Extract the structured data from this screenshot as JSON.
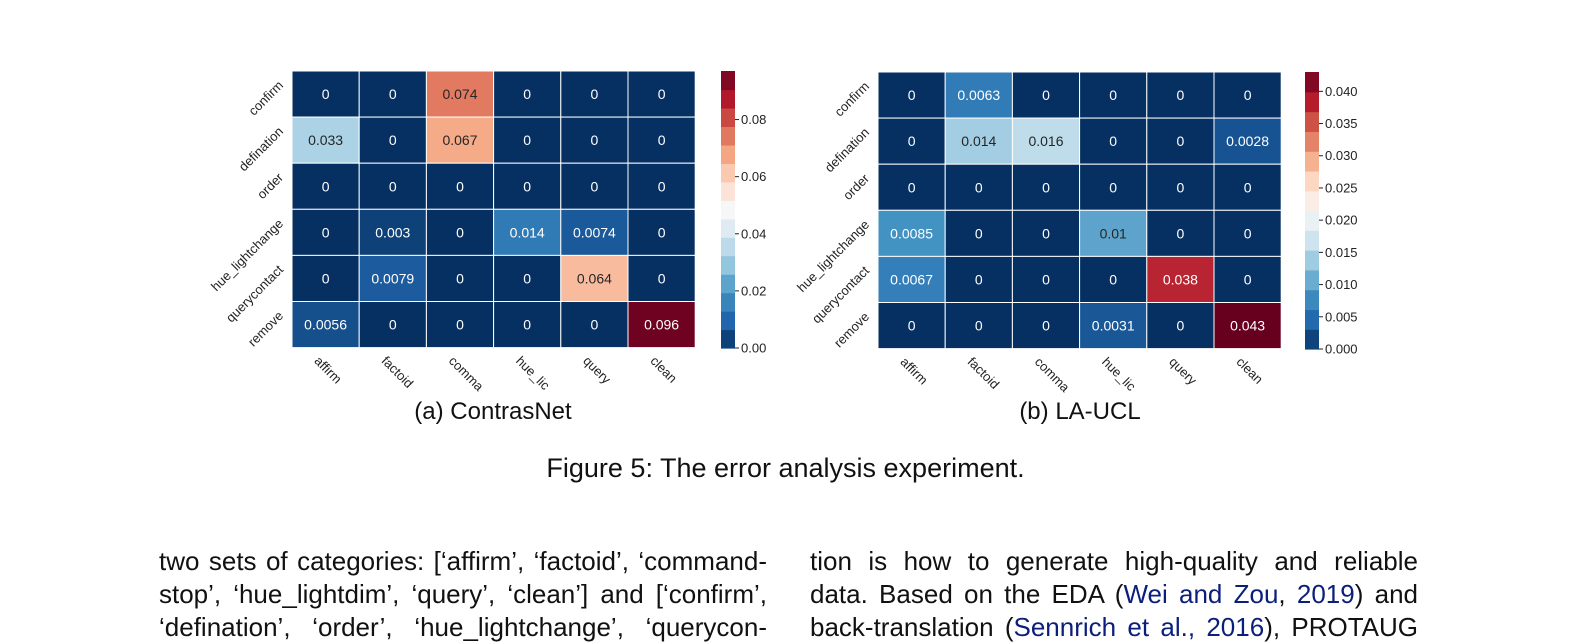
{
  "chart_data": [
    {
      "type": "heatmap",
      "caption": "(a) ContrasNet",
      "row_labels": [
        "confirm",
        "defination",
        "order",
        "hue_lightchange",
        "querycontact",
        "remove"
      ],
      "col_labels": [
        "affirm",
        "factoid",
        "comma",
        "hue_lic",
        "query",
        "clean"
      ],
      "values": [
        [
          0,
          0,
          0.074,
          0,
          0,
          0
        ],
        [
          0.033,
          0,
          0.067,
          0,
          0,
          0
        ],
        [
          0,
          0,
          0,
          0,
          0,
          0
        ],
        [
          0,
          0.003,
          0,
          0.014,
          0.0074,
          0
        ],
        [
          0,
          0.0079,
          0,
          0,
          0.064,
          0
        ],
        [
          0.0056,
          0,
          0,
          0,
          0,
          0.096
        ]
      ],
      "cell_labels": [
        [
          "0",
          "0",
          "0.074",
          "0",
          "0",
          "0"
        ],
        [
          "0.033",
          "0",
          "0.067",
          "0",
          "0",
          "0"
        ],
        [
          "0",
          "0",
          "0",
          "0",
          "0",
          "0"
        ],
        [
          "0",
          "0.003",
          "0",
          "0.014",
          "0.0074",
          "0"
        ],
        [
          "0",
          "0.0079",
          "0",
          "0",
          "0.064",
          "0"
        ],
        [
          "0.0056",
          "0",
          "0",
          "0",
          "0",
          "0.096"
        ]
      ],
      "colorbar": {
        "min": 0,
        "max": 0.097,
        "ticks": [
          0,
          0.02,
          0.04,
          0.06,
          0.08
        ],
        "tick_labels": [
          "0.00",
          "0.02",
          "0.04",
          "0.06",
          "0.08"
        ],
        "colormap": "RdBu_r"
      }
    },
    {
      "type": "heatmap",
      "caption": "(b) LA-UCL",
      "row_labels": [
        "confirm",
        "defination",
        "order",
        "hue_lightchange",
        "querycontact",
        "remove"
      ],
      "col_labels": [
        "affirm",
        "factoid",
        "comma",
        "hue_lic",
        "query",
        "clean"
      ],
      "values": [
        [
          0,
          0.0063,
          0,
          0,
          0,
          0
        ],
        [
          0,
          0.014,
          0.016,
          0,
          0,
          0.0028
        ],
        [
          0,
          0,
          0,
          0,
          0,
          0
        ],
        [
          0.0085,
          0,
          0,
          0.01,
          0,
          0
        ],
        [
          0.0067,
          0,
          0,
          0,
          0.038,
          0
        ],
        [
          0,
          0,
          0,
          0.0031,
          0,
          0.043
        ]
      ],
      "cell_labels": [
        [
          "0",
          "0.0063",
          "0",
          "0",
          "0",
          "0"
        ],
        [
          "0",
          "0.014",
          "0.016",
          "0",
          "0",
          "0.0028"
        ],
        [
          "0",
          "0",
          "0",
          "0",
          "0",
          "0"
        ],
        [
          "0.0085",
          "0",
          "0",
          "0.01",
          "0",
          "0"
        ],
        [
          "0.0067",
          "0",
          "0",
          "0",
          "0.038",
          "0"
        ],
        [
          "0",
          "0",
          "0",
          "0.0031",
          "0",
          "0.043"
        ]
      ],
      "colorbar": {
        "min": 0,
        "max": 0.043,
        "ticks": [
          0,
          0.005,
          0.01,
          0.015,
          0.02,
          0.025,
          0.03,
          0.035,
          0.04
        ],
        "tick_labels": [
          "0.000",
          "0.005",
          "0.010",
          "0.015",
          "0.020",
          "0.025",
          "0.030",
          "0.035",
          "0.040"
        ],
        "colormap": "RdBu_r"
      }
    }
  ],
  "figure_caption": "Figure 5: The error analysis experiment.",
  "colors": {
    "rdbu": [
      "#053061",
      "#2166ac",
      "#4393c3",
      "#92c5de",
      "#d1e5f0",
      "#f7f7f7",
      "#fddbc7",
      "#f4a582",
      "#d6604d",
      "#b2182b",
      "#67001f"
    ],
    "citation": "#0b1f7a"
  },
  "body_text": {
    "left": {
      "line1": "two sets of categories: [‘affirm’, ‘factoid’, ‘command-",
      "line2": "stop’, ‘hue_lightdim’, ‘query’, ‘clean’] and [‘confirm’,",
      "line3": "‘defination’, ‘order’, ‘hue_lightchange’, ‘querycon-"
    },
    "right": {
      "line1": "tion is how to generate high-quality and reliable",
      "line2_a": "data. Based on the EDA (",
      "line2_cite": "Wei and Zou",
      "line2_sep": ", ",
      "line2_year": "2019",
      "line2_b": ") and",
      "line3_a": "back-translation (",
      "line3_cite": "Sennrich et al., 2016",
      "line3_b": "), PROTAUG"
    }
  }
}
